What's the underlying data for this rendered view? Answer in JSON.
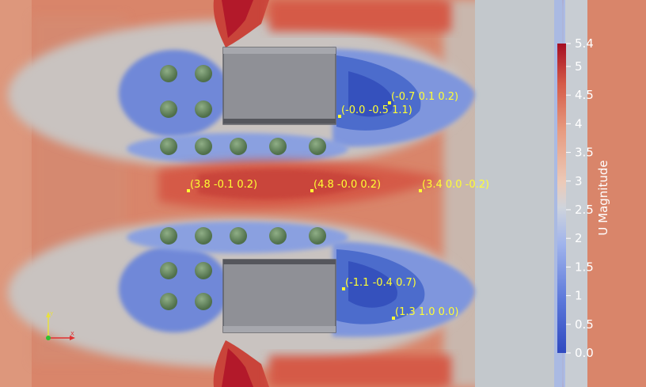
{
  "view": {
    "field_name": "U Magnitude",
    "colors": {
      "background_hot": "#d9856a",
      "cold": "#3d5fc4",
      "neutral": "#c3c8cc",
      "hot": "#b3192a",
      "probe": "#ffff33"
    }
  },
  "probes": [
    {
      "label": "(-0.7 0.1 0.2)"
    },
    {
      "label": "(-0.0 -0.5 1.1)"
    },
    {
      "label": "(3.8 -0.1 0.2)"
    },
    {
      "label": "(4.8 -0.0 0.2)"
    },
    {
      "label": "(3.4 0.0 -0.2)"
    },
    {
      "label": "(-1.1 -0.4 0.7)"
    },
    {
      "label": "(1.3 1.0 0.0)"
    }
  ],
  "legend": {
    "title": "U Magnitude",
    "min": 0.0,
    "max": 5.4,
    "ticks": [
      "5.4",
      "5",
      "4.5",
      "4",
      "3.5",
      "3",
      "2.5",
      "2",
      "1.5",
      "1",
      "0.5",
      "0.0"
    ]
  },
  "axes_triad": {
    "x_label": "X",
    "y_label": "Y",
    "x_color": "#e03030",
    "y_color": "#e8e040",
    "z_color": "#30c030"
  }
}
